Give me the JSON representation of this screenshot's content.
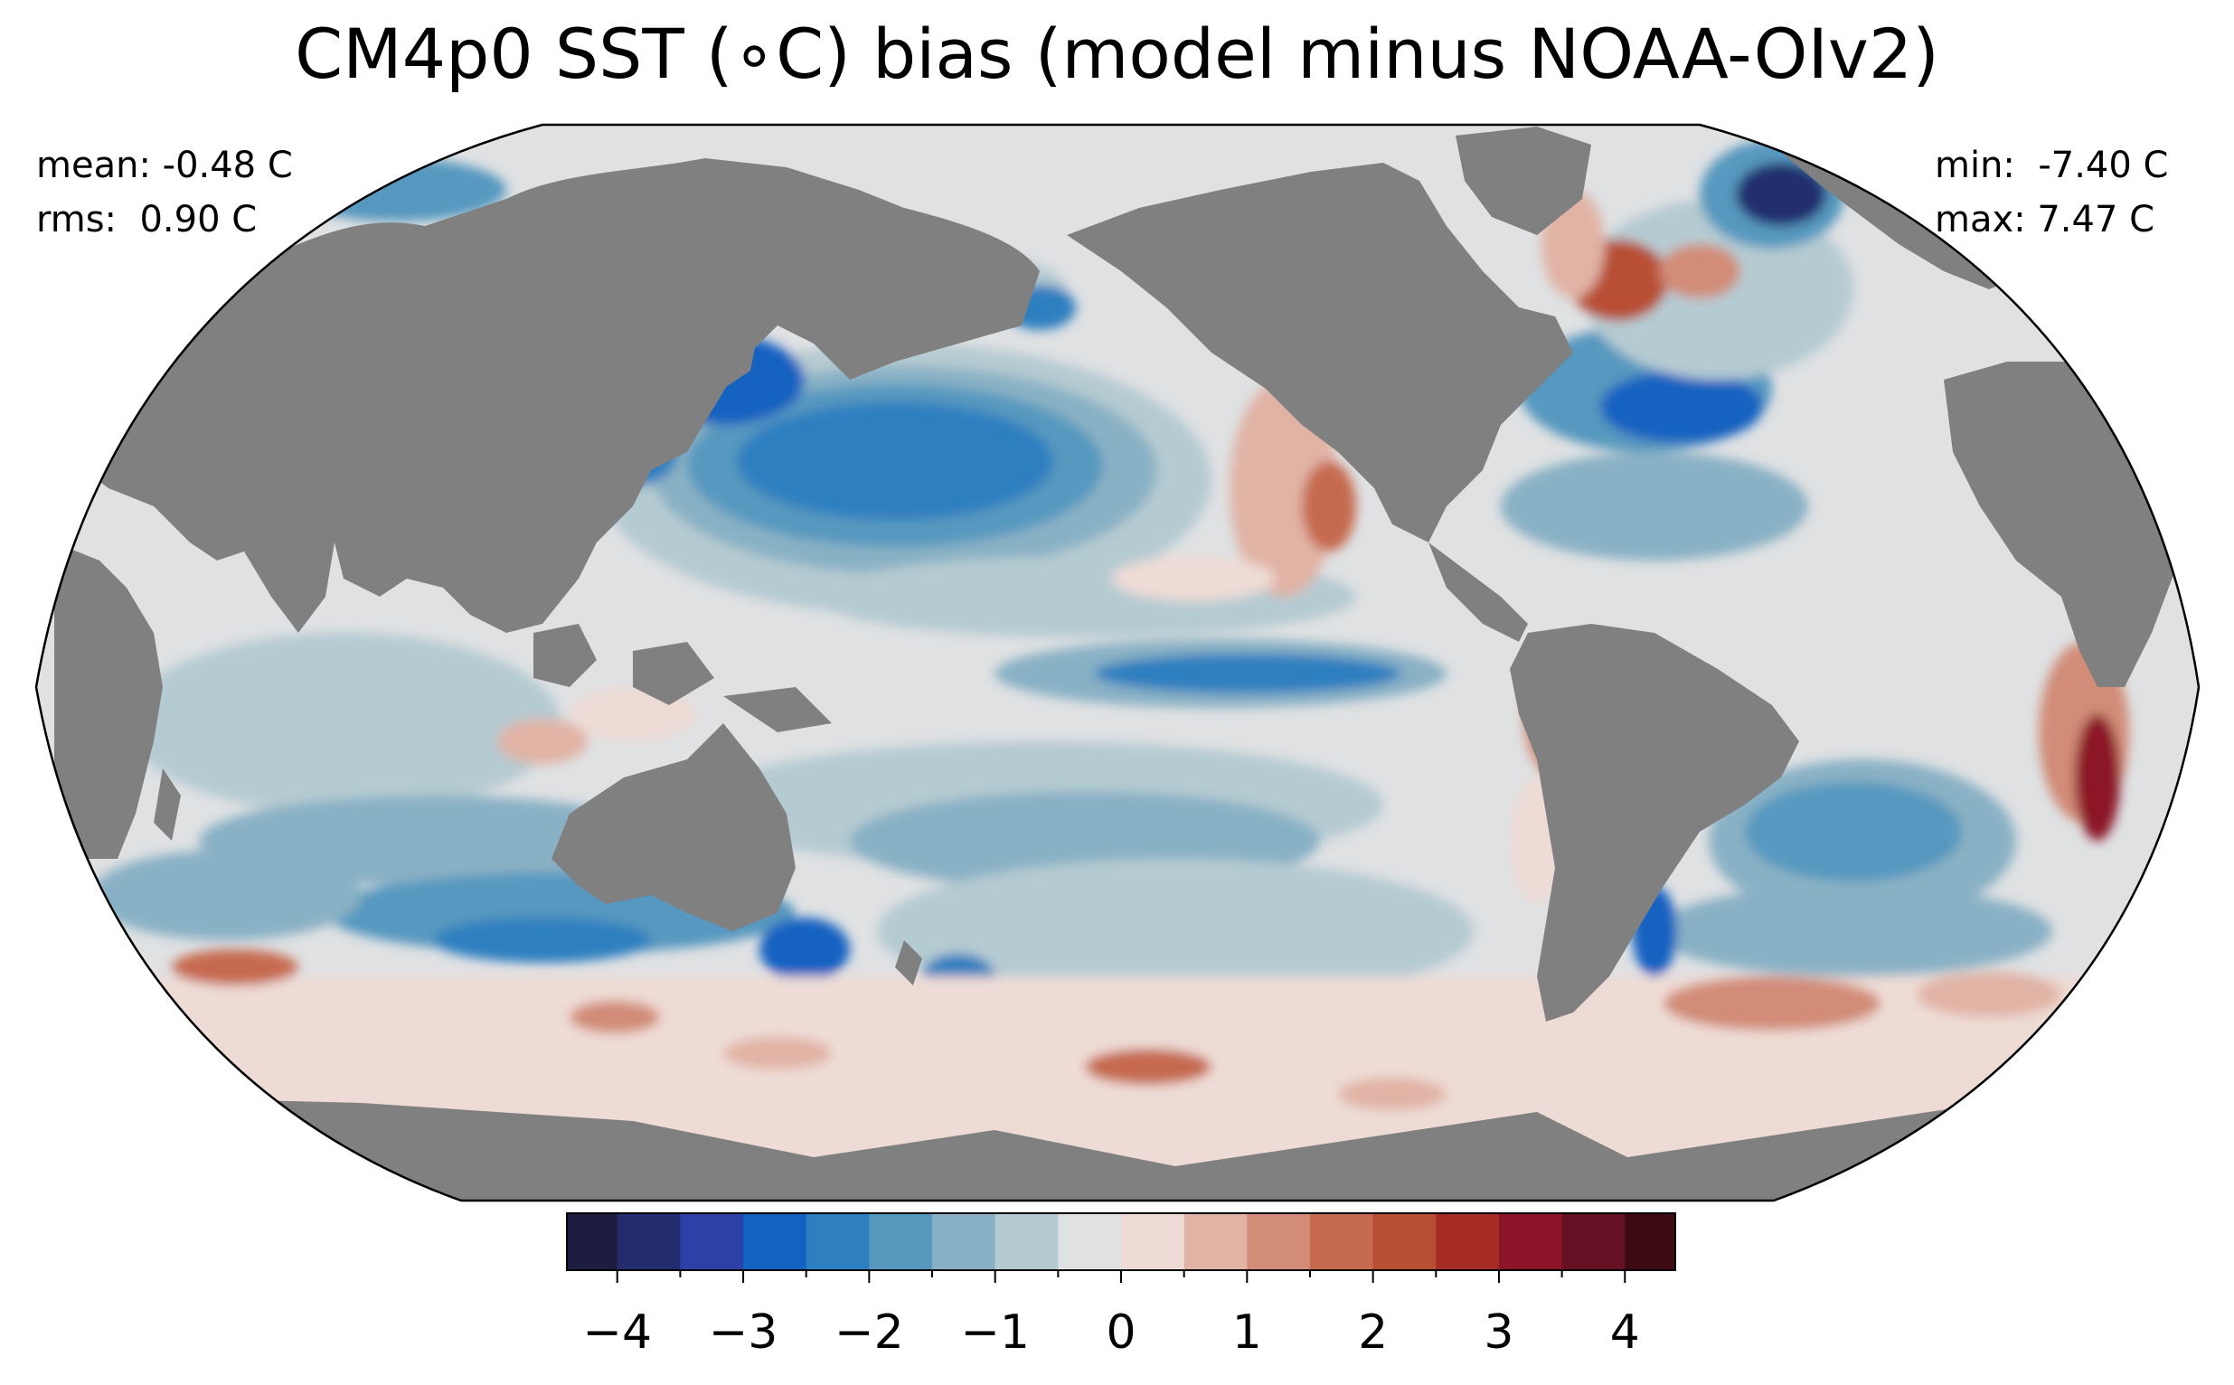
{
  "title": "CM4p0 SST (∘C) bias (model minus NOAA-OIv2)",
  "stats": {
    "mean_label": "mean: -0.48 C",
    "rms_label": "rms:  0.90 C",
    "min_label": "min:  -7.40 C",
    "max_label": "max: 7.47 C"
  },
  "colors": {
    "land": "#808080",
    "ocean_neutral": "#dfe1e3",
    "frame": "#000000"
  },
  "colorbar": {
    "min": -4.4,
    "max": 4.4,
    "bounds": [
      -4.4,
      -4.0,
      -3.5,
      -3.0,
      -2.5,
      -2.0,
      -1.5,
      -1.0,
      -0.5,
      0.0,
      0.5,
      1.0,
      1.5,
      2.0,
      2.5,
      3.0,
      3.5,
      4.0,
      4.4
    ],
    "colors": [
      "#1c1d3f",
      "#232d6e",
      "#2c40a8",
      "#1262c1",
      "#2e7fc0",
      "#5798bf",
      "#89b1c5",
      "#b5cbd2",
      "#dfe1e3",
      "#eedbd6",
      "#e1b3a5",
      "#d28c77",
      "#c66b4f",
      "#b84f34",
      "#a72b25",
      "#8b1428",
      "#661224",
      "#3e0a14"
    ],
    "tick_values": [
      -4,
      -3,
      -2,
      -1,
      0,
      1,
      2,
      3,
      4
    ],
    "tick_labels": [
      "−4",
      "−3",
      "−2",
      "−1",
      "0",
      "1",
      "2",
      "3",
      "4"
    ]
  }
}
